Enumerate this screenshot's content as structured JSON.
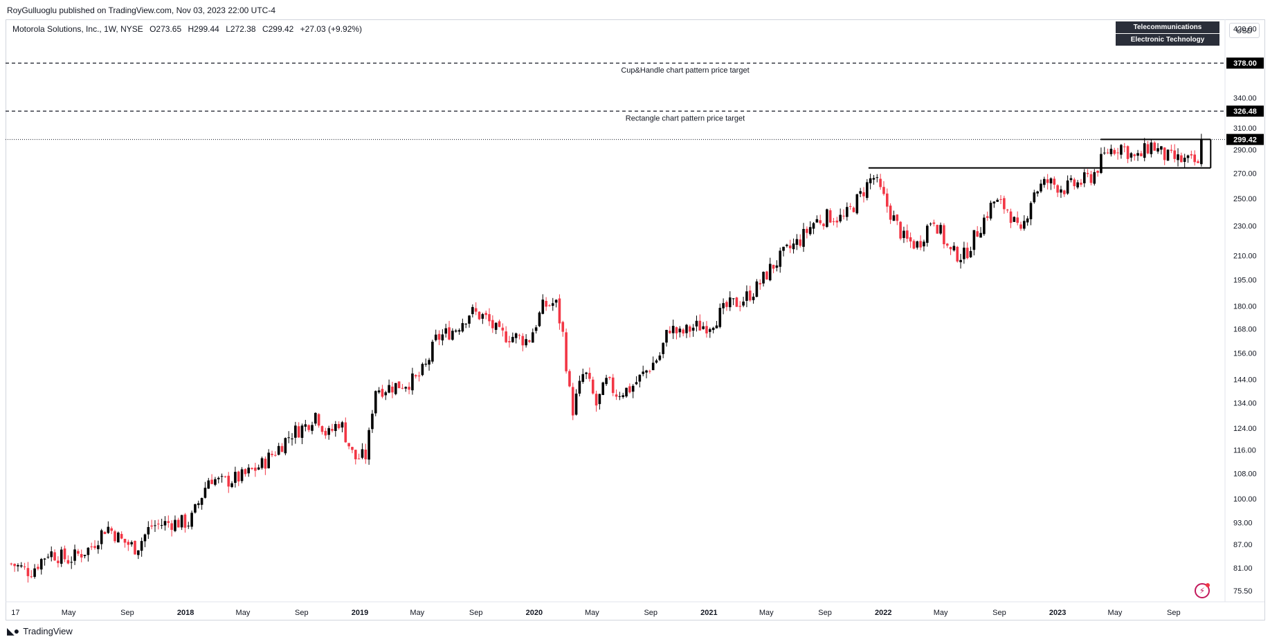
{
  "header": {
    "publisher": "RoyGulluoglu published on TradingView.com, Nov 03, 2023 22:00 UTC-4"
  },
  "legend": {
    "symbol": "Motorola Solutions, Inc., 1W, NYSE",
    "open": "O273.65",
    "high": "H299.44",
    "low": "L272.38",
    "close": "C299.42",
    "change": "+27.03 (+9.92%)"
  },
  "tags": {
    "industry": "Telecommunications Equipment",
    "sector": "Electronic Technology",
    "currency": "USD"
  },
  "annotations": {
    "cup_handle": "Cup&Handle chart pattern price target",
    "rectangle": "Rectangle chart pattern price target"
  },
  "footer": {
    "brand": "TradingView"
  },
  "colors": {
    "up": "#000000",
    "down": "#f23645",
    "axis_text": "#131722",
    "badge_bg": "#000000"
  },
  "icons": {
    "logo": "tradingview-logo-icon",
    "replay": "lightning-icon"
  },
  "chart_data": {
    "type": "candlestick",
    "scale": "log",
    "ylim": [
      73,
      432
    ],
    "y_ticks": [
      420.0,
      340.0,
      310.0,
      290.0,
      270.0,
      250.0,
      230.0,
      210.0,
      195.0,
      180.0,
      168.0,
      156.0,
      144.0,
      134.0,
      124.0,
      116.0,
      108.0,
      100.0,
      93.0,
      87.0,
      81.0,
      75.5
    ],
    "x_ticks": [
      {
        "label": "17",
        "date": "2017-01-01"
      },
      {
        "label": "May",
        "date": "2017-05-01"
      },
      {
        "label": "Sep",
        "date": "2017-09-01"
      },
      {
        "label": "2018",
        "date": "2018-01-01",
        "bold": true
      },
      {
        "label": "May",
        "date": "2018-05-01"
      },
      {
        "label": "Sep",
        "date": "2018-09-01"
      },
      {
        "label": "2019",
        "date": "2019-01-01",
        "bold": true
      },
      {
        "label": "May",
        "date": "2019-05-01"
      },
      {
        "label": "Sep",
        "date": "2019-09-01"
      },
      {
        "label": "2020",
        "date": "2020-01-01",
        "bold": true
      },
      {
        "label": "May",
        "date": "2020-05-01"
      },
      {
        "label": "Sep",
        "date": "2020-09-01"
      },
      {
        "label": "2021",
        "date": "2021-01-01",
        "bold": true
      },
      {
        "label": "May",
        "date": "2021-05-01"
      },
      {
        "label": "Sep",
        "date": "2021-09-01"
      },
      {
        "label": "2022",
        "date": "2022-01-01",
        "bold": true
      },
      {
        "label": "May",
        "date": "2022-05-01"
      },
      {
        "label": "Sep",
        "date": "2022-09-01"
      },
      {
        "label": "2023",
        "date": "2023-01-01",
        "bold": true
      },
      {
        "label": "May",
        "date": "2023-05-01"
      },
      {
        "label": "Sep",
        "date": "2023-09-01"
      }
    ],
    "price_badges": [
      {
        "value": 378.0,
        "label": "378.00"
      },
      {
        "value": 326.48,
        "label": "326.48"
      },
      {
        "value": 299.42,
        "label": "299.42"
      }
    ],
    "levels": {
      "cup_handle_target": 378.0,
      "rectangle_target": 326.48,
      "last_close": 299.42
    },
    "rectangle": {
      "top": 299.5,
      "bottom": 274.5,
      "start": "2023-04-01",
      "end": "2023-11-03"
    },
    "cup_rim": {
      "value": 274.5,
      "start": "2021-12-01",
      "end": "2023-04-01"
    },
    "price_path": [
      [
        "2017-01-01",
        82
      ],
      [
        "2017-02-10",
        80
      ],
      [
        "2017-03-20",
        85
      ],
      [
        "2017-05-01",
        83
      ],
      [
        "2017-06-15",
        86
      ],
      [
        "2017-07-20",
        92
      ],
      [
        "2017-08-20",
        88
      ],
      [
        "2017-09-20",
        86
      ],
      [
        "2017-10-20",
        92
      ],
      [
        "2017-12-01",
        93
      ],
      [
        "2018-01-10",
        93
      ],
      [
        "2018-02-01",
        100
      ],
      [
        "2018-02-20",
        107
      ],
      [
        "2018-03-15",
        105
      ],
      [
        "2018-05-01",
        107
      ],
      [
        "2018-06-10",
        111
      ],
      [
        "2018-07-10",
        116
      ],
      [
        "2018-08-10",
        122
      ],
      [
        "2018-09-10",
        125
      ],
      [
        "2018-10-01",
        130
      ],
      [
        "2018-10-25",
        121
      ],
      [
        "2018-11-20",
        127
      ],
      [
        "2018-12-20",
        113
      ],
      [
        "2019-01-15",
        114
      ],
      [
        "2019-02-01",
        140
      ],
      [
        "2019-02-20",
        140
      ],
      [
        "2019-04-01",
        142
      ],
      [
        "2019-05-01",
        144
      ],
      [
        "2019-05-20",
        150
      ],
      [
        "2019-06-10",
        163
      ],
      [
        "2019-07-20",
        168
      ],
      [
        "2019-08-20",
        177
      ],
      [
        "2019-09-20",
        174
      ],
      [
        "2019-10-20",
        165
      ],
      [
        "2019-11-20",
        164
      ],
      [
        "2019-12-20",
        162
      ],
      [
        "2020-01-20",
        180
      ],
      [
        "2020-02-15",
        182
      ],
      [
        "2020-03-01",
        165
      ],
      [
        "2020-03-20",
        130
      ],
      [
        "2020-04-15",
        148
      ],
      [
        "2020-05-10",
        133
      ],
      [
        "2020-06-01",
        143
      ],
      [
        "2020-06-20",
        138
      ],
      [
        "2020-07-20",
        140
      ],
      [
        "2020-08-20",
        147
      ],
      [
        "2020-09-20",
        155
      ],
      [
        "2020-10-10",
        169
      ],
      [
        "2020-11-01",
        165
      ],
      [
        "2020-12-01",
        169
      ],
      [
        "2021-01-01",
        170
      ],
      [
        "2021-02-10",
        180
      ],
      [
        "2021-03-10",
        183
      ],
      [
        "2021-04-10",
        190
      ],
      [
        "2021-05-10",
        202
      ],
      [
        "2021-06-10",
        212
      ],
      [
        "2021-07-10",
        220
      ],
      [
        "2021-08-10",
        233
      ],
      [
        "2021-09-10",
        237
      ],
      [
        "2021-10-10",
        235
      ],
      [
        "2021-11-10",
        250
      ],
      [
        "2021-12-10",
        268
      ],
      [
        "2022-01-15",
        240
      ],
      [
        "2022-02-15",
        220
      ],
      [
        "2022-03-15",
        217
      ],
      [
        "2022-04-15",
        237
      ],
      [
        "2022-05-20",
        212
      ],
      [
        "2022-06-20",
        210
      ],
      [
        "2022-07-20",
        228
      ],
      [
        "2022-08-20",
        248
      ],
      [
        "2022-09-20",
        242
      ],
      [
        "2022-10-15",
        222
      ],
      [
        "2022-11-10",
        255
      ],
      [
        "2022-12-10",
        263
      ],
      [
        "2023-01-15",
        258
      ],
      [
        "2023-02-15",
        262
      ],
      [
        "2023-03-15",
        268
      ],
      [
        "2023-04-15",
        289
      ],
      [
        "2023-05-15",
        294
      ],
      [
        "2023-06-15",
        281
      ],
      [
        "2023-07-15",
        295
      ],
      [
        "2023-08-15",
        284
      ],
      [
        "2023-09-15",
        281
      ],
      [
        "2023-10-15",
        279
      ],
      [
        "2023-10-27",
        272
      ],
      [
        "2023-11-03",
        299.42
      ]
    ]
  }
}
